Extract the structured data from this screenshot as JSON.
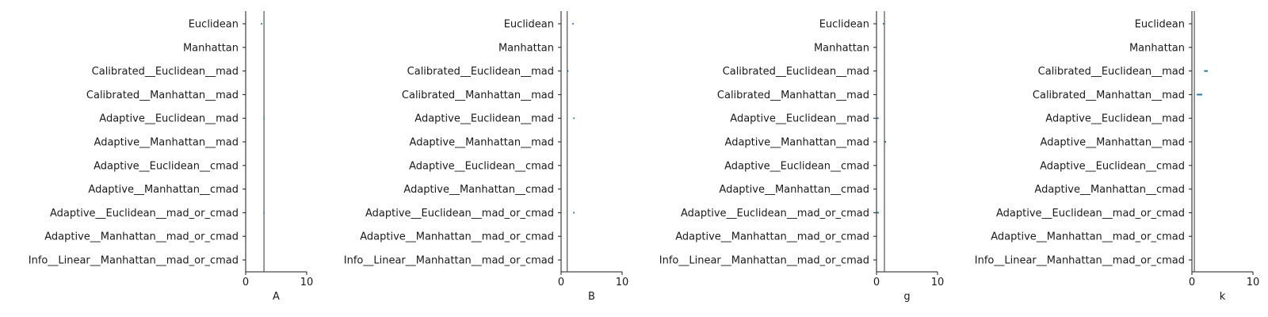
{
  "chart_data": [
    {
      "type": "scatter",
      "xlabel": "A",
      "xlim": [
        0,
        10
      ],
      "xticks": [
        "0",
        "10"
      ],
      "categories": [
        "Euclidean",
        "Manhattan",
        "Calibrated__Euclidean__mad",
        "Calibrated__Manhattan__mad",
        "Adaptive__Euclidean__mad",
        "Adaptive__Manhattan__mad",
        "Adaptive__Euclidean__cmad",
        "Adaptive__Manhattan__cmad",
        "Adaptive__Euclidean__mad_or_cmad",
        "Adaptive__Manhattan__mad_or_cmad",
        "Info__Linear__Manhattan__mad_or_cmad"
      ],
      "reference_line": 3.0,
      "points": [
        {
          "category": "Euclidean",
          "low": 2.5,
          "high": 2.7
        },
        {
          "category": "Adaptive__Euclidean__mad",
          "low": 2.9,
          "high": 3.0
        },
        {
          "category": "Adaptive__Euclidean__mad_or_cmad",
          "low": 2.9,
          "high": 3.0
        }
      ]
    },
    {
      "type": "scatter",
      "xlabel": "B",
      "xlim": [
        0,
        10
      ],
      "xticks": [
        "0",
        "10"
      ],
      "categories": [
        "Euclidean",
        "Manhattan",
        "Calibrated__Euclidean__mad",
        "Calibrated__Manhattan__mad",
        "Adaptive__Euclidean__mad",
        "Adaptive__Manhattan__mad",
        "Adaptive__Euclidean__cmad",
        "Adaptive__Manhattan__cmad",
        "Adaptive__Euclidean__mad_or_cmad",
        "Adaptive__Manhattan__mad_or_cmad",
        "Info__Linear__Manhattan__mad_or_cmad"
      ],
      "reference_line": 1.0,
      "points": [
        {
          "category": "Euclidean",
          "low": 1.85,
          "high": 2.0
        },
        {
          "category": "Calibrated__Euclidean__mad",
          "low": 1.0,
          "high": 1.2
        },
        {
          "category": "Adaptive__Euclidean__mad",
          "low": 2.0,
          "high": 2.15
        },
        {
          "category": "Adaptive__Euclidean__mad_or_cmad",
          "low": 2.0,
          "high": 2.1
        }
      ]
    },
    {
      "type": "scatter",
      "xlabel": "g",
      "xlim": [
        0,
        10
      ],
      "xticks": [
        "0",
        "10"
      ],
      "categories": [
        "Euclidean",
        "Manhattan",
        "Calibrated__Euclidean__mad",
        "Calibrated__Manhattan__mad",
        "Adaptive__Euclidean__mad",
        "Adaptive__Manhattan__mad",
        "Adaptive__Euclidean__cmad",
        "Adaptive__Manhattan__cmad",
        "Adaptive__Euclidean__mad_or_cmad",
        "Adaptive__Manhattan__mad_or_cmad",
        "Info__Linear__Manhattan__mad_or_cmad"
      ],
      "reference_line": 1.3,
      "points": [
        {
          "category": "Euclidean",
          "low": 1.05,
          "high": 1.2
        },
        {
          "category": "Adaptive__Euclidean__mad",
          "low": 0.0,
          "high": 0.35
        },
        {
          "category": "Adaptive__Manhattan__mad",
          "low": 1.35,
          "high": 1.45
        },
        {
          "category": "Adaptive__Euclidean__mad_or_cmad",
          "low": 0.0,
          "high": 0.4
        }
      ]
    },
    {
      "type": "scatter",
      "xlabel": "k",
      "xlim": [
        0,
        10
      ],
      "xticks": [
        "0",
        "10"
      ],
      "categories": [
        "Euclidean",
        "Manhattan",
        "Calibrated__Euclidean__mad",
        "Calibrated__Manhattan__mad",
        "Adaptive__Euclidean__mad",
        "Adaptive__Manhattan__mad",
        "Adaptive__Euclidean__cmad",
        "Adaptive__Manhattan__cmad",
        "Adaptive__Euclidean__mad_or_cmad",
        "Adaptive__Manhattan__mad_or_cmad",
        "Info__Linear__Manhattan__mad_or_cmad"
      ],
      "reference_line": 0.4,
      "points": [
        {
          "category": "Calibrated__Euclidean__mad",
          "low": 2.0,
          "high": 2.6
        },
        {
          "category": "Calibrated__Manhattan__mad",
          "low": 0.8,
          "high": 1.7
        }
      ]
    }
  ],
  "colors": {
    "axis": "#1a1a1a",
    "reference_line": "#555555",
    "points": "#1f77b4"
  }
}
